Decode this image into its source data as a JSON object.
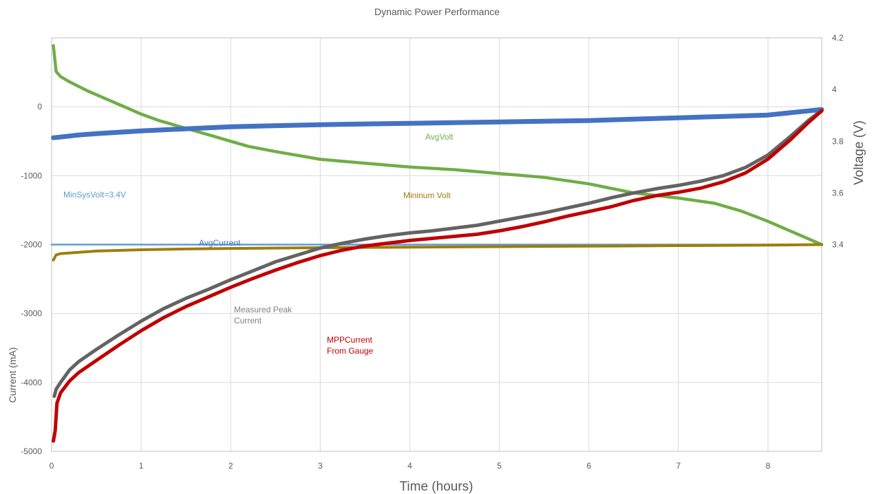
{
  "chart_data": {
    "type": "line",
    "title": "Dynamic Power Performance",
    "xlabel": "Time (hours)",
    "ylabel_left": "Current (mA)",
    "ylabel_right": "Voltage (V)",
    "xlim": [
      0,
      8.6
    ],
    "ylim_left": [
      -5000,
      1000
    ],
    "ylim_right": [
      2.6,
      4.2
    ],
    "x_ticks": [
      "0",
      "1",
      "2",
      "3",
      "4",
      "5",
      "6",
      "7",
      "8"
    ],
    "y_left_ticks": [
      "0",
      "-1000",
      "-2000",
      "-3000",
      "-4000",
      "-5000"
    ],
    "y_right_ticks": [
      "4.2",
      "4",
      "3.8",
      "3.6",
      "3.4"
    ],
    "grid": true,
    "legend": "none",
    "annotations": {
      "min_sys_volt": "MinSysVolt=3.4V",
      "avg_volt": "AvgVolt",
      "min_volt": "Mininum Volt",
      "avg_current": "AvgCurrent",
      "measured_peak": "Measured Peak Current",
      "mpp_current": "MPPCurrent From Gauge"
    },
    "series": [
      {
        "name": "AvgVolt",
        "axis": "right",
        "color": "#70ad47",
        "x": [
          0.02,
          0.05,
          0.1,
          0.2,
          0.4,
          0.6,
          0.8,
          1.0,
          1.2,
          1.5,
          1.8,
          2.0,
          2.2,
          2.5,
          3.0,
          3.5,
          4.0,
          4.5,
          5.0,
          5.5,
          6.0,
          6.5,
          7.0,
          7.4,
          7.7,
          8.0,
          8.3,
          8.6
        ],
        "y": [
          4.17,
          4.07,
          4.05,
          4.03,
          3.995,
          3.965,
          3.935,
          3.905,
          3.88,
          3.85,
          3.82,
          3.8,
          3.78,
          3.76,
          3.73,
          3.715,
          3.7,
          3.69,
          3.675,
          3.66,
          3.635,
          3.6,
          3.58,
          3.56,
          3.53,
          3.49,
          3.445,
          3.4
        ]
      },
      {
        "name": "MinSysVolt=3.4V",
        "axis": "right",
        "color": "#5b9bd5",
        "x": [
          0,
          8.6
        ],
        "y": [
          3.4,
          3.4
        ]
      },
      {
        "name": "Mininum Volt",
        "axis": "right",
        "color": "#9e7d0c",
        "x": [
          0.02,
          0.05,
          0.1,
          0.3,
          0.5,
          1.0,
          1.5,
          2.0,
          3.0,
          4.0,
          5.0,
          6.0,
          7.0,
          8.0,
          8.6
        ],
        "y": [
          3.34,
          3.36,
          3.365,
          3.37,
          3.375,
          3.38,
          3.383,
          3.385,
          3.388,
          3.39,
          3.392,
          3.394,
          3.396,
          3.398,
          3.4
        ]
      },
      {
        "name": "AvgCurrent",
        "axis": "left",
        "color": "#4472c4",
        "x": [
          0.02,
          0.1,
          0.3,
          0.5,
          1.0,
          1.5,
          2.0,
          3.0,
          4.0,
          5.0,
          6.0,
          7.0,
          7.5,
          8.0,
          8.3,
          8.6
        ],
        "y": [
          -450,
          -440,
          -410,
          -390,
          -350,
          -320,
          -290,
          -260,
          -240,
          -220,
          -200,
          -160,
          -140,
          -120,
          -80,
          -40
        ]
      },
      {
        "name": "Measured Peak Current",
        "axis": "left",
        "color": "#636363",
        "x": [
          0.03,
          0.05,
          0.1,
          0.2,
          0.3,
          0.5,
          0.75,
          1.0,
          1.25,
          1.5,
          1.75,
          2.0,
          2.25,
          2.5,
          2.75,
          3.0,
          3.25,
          3.5,
          3.75,
          4.0,
          4.25,
          4.5,
          4.75,
          5.0,
          5.25,
          5.5,
          5.75,
          6.0,
          6.25,
          6.5,
          6.75,
          7.0,
          7.25,
          7.5,
          7.75,
          8.0,
          8.25,
          8.45,
          8.6
        ],
        "y": [
          -4200,
          -4100,
          -4000,
          -3820,
          -3700,
          -3520,
          -3310,
          -3110,
          -2930,
          -2780,
          -2650,
          -2510,
          -2380,
          -2250,
          -2150,
          -2050,
          -1980,
          -1920,
          -1870,
          -1830,
          -1800,
          -1760,
          -1720,
          -1660,
          -1600,
          -1540,
          -1470,
          -1400,
          -1320,
          -1250,
          -1190,
          -1140,
          -1080,
          -1000,
          -880,
          -700,
          -430,
          -200,
          -50
        ]
      },
      {
        "name": "MPPCurrent From Gauge",
        "axis": "left",
        "color": "#c00000",
        "x": [
          0.02,
          0.04,
          0.06,
          0.1,
          0.2,
          0.3,
          0.5,
          0.75,
          1.0,
          1.25,
          1.5,
          1.75,
          2.0,
          2.25,
          2.5,
          2.75,
          3.0,
          3.25,
          3.5,
          3.75,
          4.0,
          4.25,
          4.5,
          4.75,
          5.0,
          5.25,
          5.5,
          5.75,
          6.0,
          6.25,
          6.5,
          6.75,
          7.0,
          7.25,
          7.5,
          7.75,
          8.0,
          8.25,
          8.45,
          8.6
        ],
        "y": [
          -4850,
          -4700,
          -4300,
          -4150,
          -3980,
          -3860,
          -3680,
          -3460,
          -3250,
          -3060,
          -2900,
          -2760,
          -2620,
          -2490,
          -2370,
          -2260,
          -2160,
          -2080,
          -2020,
          -1980,
          -1940,
          -1910,
          -1880,
          -1850,
          -1800,
          -1740,
          -1670,
          -1590,
          -1520,
          -1450,
          -1360,
          -1290,
          -1240,
          -1180,
          -1090,
          -960,
          -760,
          -480,
          -230,
          -60
        ]
      }
    ]
  }
}
